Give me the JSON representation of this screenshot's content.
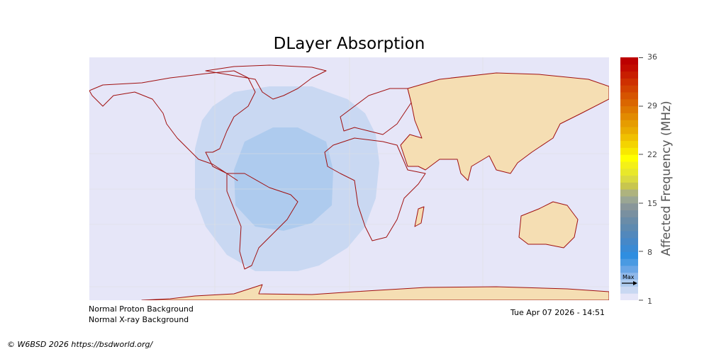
{
  "title": "DLayer Absorption",
  "colorbar": {
    "label": "Affected Frequency (MHz)",
    "min": 1,
    "max": 36,
    "ticks": [
      "36",
      "29",
      "22",
      "15",
      "8",
      "1"
    ],
    "marker_label": "Max",
    "marker_value": 4,
    "colors": [
      "#e6e6f8",
      "#c9d8f2",
      "#aecbee",
      "#8fb8ea",
      "#6aa6e6",
      "#4a9ae2",
      "#2f8ee0",
      "#3a8ad4",
      "#4688c8",
      "#5288bc",
      "#5e8ab0",
      "#6a8ca8",
      "#7990a0",
      "#88969a",
      "#9aa694",
      "#aeb37e",
      "#c8c64e",
      "#dada40",
      "#e8e82a",
      "#f4f018",
      "#ffff00",
      "#f8e800",
      "#f4d400",
      "#f0c000",
      "#eaac00",
      "#e69c00",
      "#e28a00",
      "#de7800",
      "#da6600",
      "#d65400",
      "#d24200",
      "#ce3000",
      "#c81e00",
      "#c20c00",
      "#bc0000"
    ]
  },
  "status": {
    "proton": "Normal Proton Background",
    "xray": "Normal X-ray Background",
    "timestamp": "Tue Apr 07 2026 - 14:51"
  },
  "copyright": "© W6BSD 2026 https://bsdworld.org/",
  "colors": {
    "ocean": "#e6e6f8",
    "land": "#f5deb3",
    "coast": "#a01010",
    "absorption_outer": "#c9d8f2",
    "absorption_inner": "#aecbee"
  }
}
